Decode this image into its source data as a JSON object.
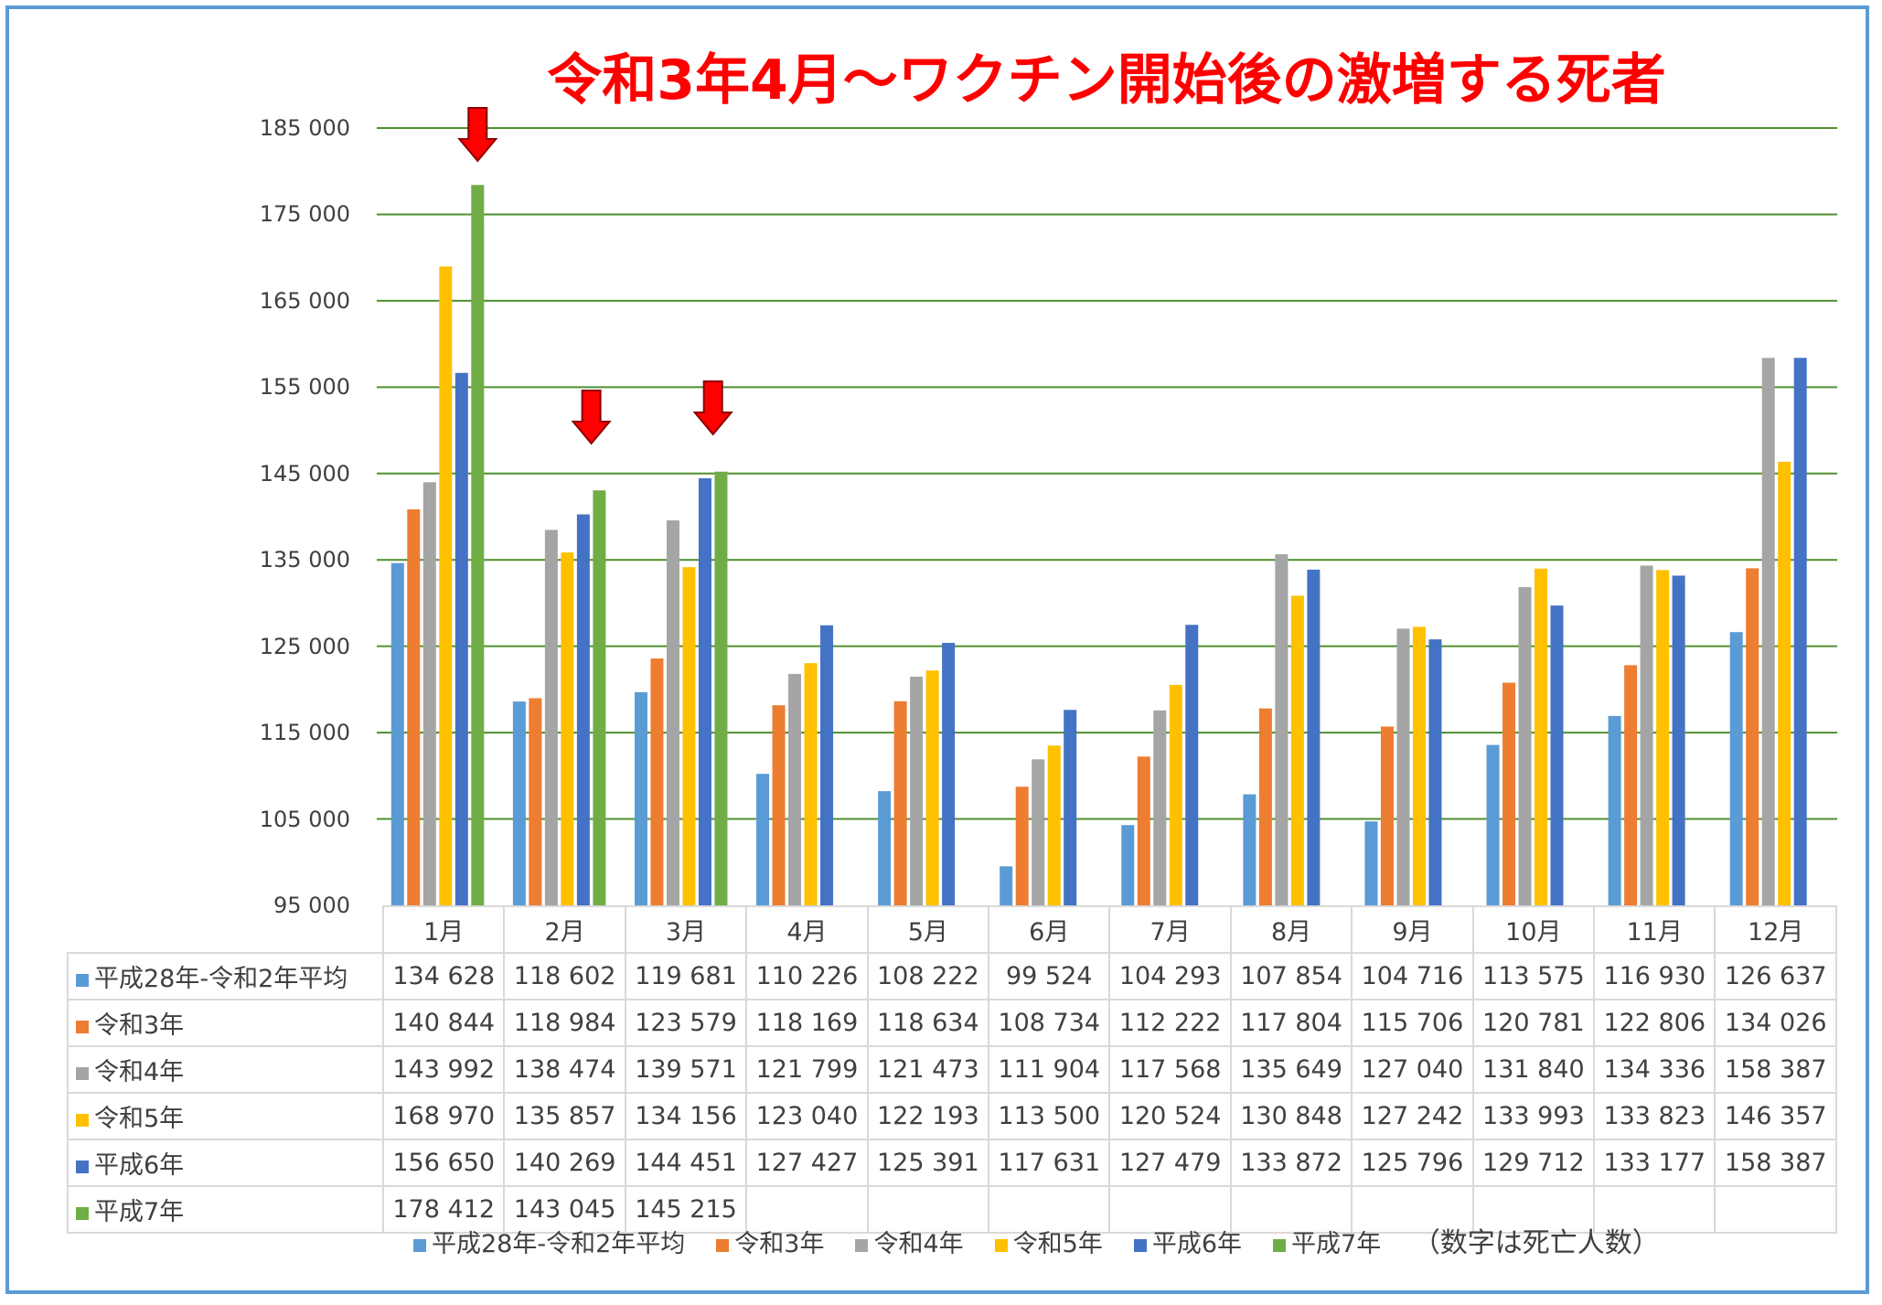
{
  "title": "令和3年4月～ワクチン開始後の激増する死者",
  "note": "（数字は死亡人数）",
  "chart_data": {
    "type": "bar",
    "title": "令和3年4月～ワクチン開始後の激増する死者",
    "ylim": [
      95000,
      185000
    ],
    "yticks": [
      "95 000",
      "105 000",
      "115 000",
      "125 000",
      "135 000",
      "145 000",
      "155 000",
      "165 000",
      "175 000",
      "185 000"
    ],
    "ytick_values": [
      95000,
      105000,
      115000,
      125000,
      135000,
      145000,
      155000,
      165000,
      175000,
      185000
    ],
    "grid": true,
    "legend_position": "bottom",
    "categories": [
      "1月",
      "2月",
      "3月",
      "4月",
      "5月",
      "6月",
      "7月",
      "8月",
      "9月",
      "10月",
      "11月",
      "12月"
    ],
    "series": [
      {
        "name": "平成28年-令和2年平均",
        "color": "#5b9bd5",
        "values": [
          134628,
          118602,
          119681,
          110226,
          108222,
          99524,
          104293,
          107854,
          104716,
          113575,
          116930,
          126637
        ],
        "labels": [
          "134 628",
          "118 602",
          "119 681",
          "110 226",
          "108 222",
          "99 524",
          "104 293",
          "107 854",
          "104 716",
          "113 575",
          "116 930",
          "126 637"
        ]
      },
      {
        "name": "令和3年",
        "color": "#ed7d31",
        "values": [
          140844,
          118984,
          123579,
          118169,
          118634,
          108734,
          112222,
          117804,
          115706,
          120781,
          122806,
          134026
        ],
        "labels": [
          "140 844",
          "118 984",
          "123 579",
          "118 169",
          "118 634",
          "108 734",
          "112 222",
          "117 804",
          "115 706",
          "120 781",
          "122 806",
          "134 026"
        ]
      },
      {
        "name": "令和4年",
        "color": "#a5a5a5",
        "values": [
          143992,
          138474,
          139571,
          121799,
          121473,
          111904,
          117568,
          135649,
          127040,
          131840,
          134336,
          158387
        ],
        "labels": [
          "143 992",
          "138 474",
          "139 571",
          "121 799",
          "121 473",
          "111 904",
          "117 568",
          "135 649",
          "127 040",
          "131 840",
          "134 336",
          "158 387"
        ]
      },
      {
        "name": "令和5年",
        "color": "#ffc000",
        "values": [
          168970,
          135857,
          134156,
          123040,
          122193,
          113500,
          120524,
          130848,
          127242,
          133993,
          133823,
          146357
        ],
        "labels": [
          "168 970",
          "135 857",
          "134 156",
          "123 040",
          "122 193",
          "113 500",
          "120 524",
          "130 848",
          "127 242",
          "133 993",
          "133 823",
          "146 357"
        ]
      },
      {
        "name": "平成6年",
        "color": "#4472c4",
        "values": [
          156650,
          140269,
          144451,
          127427,
          125391,
          117631,
          127479,
          133872,
          125796,
          129712,
          133177,
          158387
        ],
        "labels": [
          "156 650",
          "140 269",
          "144 451",
          "127 427",
          "125 391",
          "117 631",
          "127 479",
          "133 872",
          "125 796",
          "129 712",
          "133 177",
          "158 387"
        ]
      },
      {
        "name": "平成7年",
        "color": "#70ad47",
        "values": [
          178412,
          143045,
          145215,
          null,
          null,
          null,
          null,
          null,
          null,
          null,
          null,
          null
        ],
        "labels": [
          "178 412",
          "143 045",
          "145 215",
          "",
          "",
          "",
          "",
          "",
          "",
          "",
          "",
          ""
        ]
      }
    ],
    "annotations": [
      {
        "type": "arrow-down",
        "category": "1月",
        "color": "#ff0000"
      },
      {
        "type": "arrow-down",
        "category": "2月",
        "color": "#ff0000"
      },
      {
        "type": "arrow-down",
        "category": "3月",
        "color": "#ff0000"
      }
    ]
  }
}
